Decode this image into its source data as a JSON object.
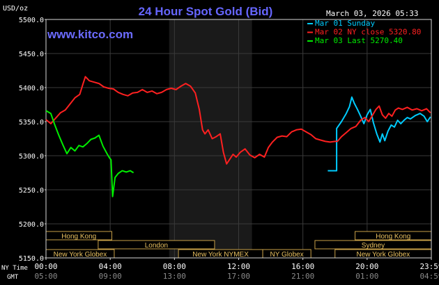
{
  "chart_data": {
    "type": "line",
    "title": "24 Hour Spot Gold (Bid)",
    "ylabel": "USD/oz",
    "watermark": "www.kitco.com",
    "timestamp": "March 03, 2026 05:33",
    "ylim": [
      5150,
      5500
    ],
    "y_ticks": [
      "5500.0",
      "5450.0",
      "5400.0",
      "5350.0",
      "5300.0",
      "5250.0",
      "5200.0",
      "5150.0"
    ],
    "xlim": [
      0,
      24
    ],
    "x_ticks": [
      {
        "h": 0,
        "ny": "00:00",
        "gmt": "05:00"
      },
      {
        "h": 4,
        "ny": "04:00",
        "gmt": "09:00"
      },
      {
        "h": 8,
        "ny": "08:00",
        "gmt": "13:00"
      },
      {
        "h": 12,
        "ny": "12:00",
        "gmt": "17:00"
      },
      {
        "h": 16,
        "ny": "16:00",
        "gmt": "21:00"
      },
      {
        "h": 20,
        "ny": "20:00",
        "gmt": "01:00"
      },
      {
        "h": 24,
        "ny": "23:59",
        "gmt": "04:59"
      }
    ],
    "time_labels": {
      "ny": "NY Time",
      "gmt": "GMT"
    },
    "shaded_period": [
      7.67,
      12.83
    ],
    "legend": [
      {
        "text": "Mar 01 Sunday",
        "color": "#00ccff"
      },
      {
        "text": "Mar 02 NY close 5320.80",
        "color": "#ff2020"
      },
      {
        "text": "Mar 03 Last 5270.40",
        "color": "#00ee00"
      }
    ],
    "sessions": [
      {
        "name": "Hong Kong",
        "start": 0,
        "end": 4.1,
        "row": 0
      },
      {
        "name": "London",
        "start": 3.25,
        "end": 10.5,
        "row": 1
      },
      {
        "name": "New York Globex",
        "start": 0,
        "end": 4.25,
        "row": 2
      },
      {
        "name": "New York NYMEX",
        "start": 8.25,
        "end": 13.5,
        "row": 2
      },
      {
        "name": "NY Globex",
        "start": 13.5,
        "end": 16.5,
        "row": 2
      },
      {
        "name": "Hong Kong",
        "start": 19.25,
        "end": 24,
        "row": 0
      },
      {
        "name": "Sydney",
        "start": 16.75,
        "end": 24,
        "row": 1
      },
      {
        "name": "New York Globex",
        "start": 18,
        "end": 24,
        "row": 2
      }
    ],
    "series": [
      {
        "color": "#00ccff",
        "points": [
          [
            17.55,
            5278
          ],
          [
            18.1,
            5278
          ],
          [
            18.1,
            5340
          ],
          [
            18.4,
            5350
          ],
          [
            18.7,
            5362
          ],
          [
            18.9,
            5372
          ],
          [
            19.05,
            5386
          ],
          [
            19.2,
            5377
          ],
          [
            19.4,
            5368
          ],
          [
            19.6,
            5358
          ],
          [
            19.8,
            5347
          ],
          [
            20.0,
            5360
          ],
          [
            20.2,
            5368
          ],
          [
            20.4,
            5348
          ],
          [
            20.6,
            5332
          ],
          [
            20.8,
            5320
          ],
          [
            20.95,
            5332
          ],
          [
            21.1,
            5322
          ],
          [
            21.3,
            5336
          ],
          [
            21.5,
            5345
          ],
          [
            21.7,
            5342
          ],
          [
            21.9,
            5352
          ],
          [
            22.1,
            5347
          ],
          [
            22.3,
            5352
          ],
          [
            22.5,
            5356
          ],
          [
            22.7,
            5354
          ],
          [
            23.0,
            5359
          ],
          [
            23.3,
            5362
          ],
          [
            23.55,
            5358
          ],
          [
            23.75,
            5350
          ],
          [
            23.95,
            5357
          ]
        ]
      },
      {
        "color": "#ff2020",
        "points": [
          [
            0.0,
            5353
          ],
          [
            0.3,
            5347
          ],
          [
            0.6,
            5355
          ],
          [
            0.9,
            5363
          ],
          [
            1.2,
            5367
          ],
          [
            1.5,
            5376
          ],
          [
            1.8,
            5385
          ],
          [
            2.1,
            5390
          ],
          [
            2.3,
            5405
          ],
          [
            2.45,
            5416
          ],
          [
            2.7,
            5410
          ],
          [
            3.0,
            5408
          ],
          [
            3.3,
            5406
          ],
          [
            3.6,
            5401
          ],
          [
            3.9,
            5399
          ],
          [
            4.2,
            5398
          ],
          [
            4.5,
            5393
          ],
          [
            4.8,
            5390
          ],
          [
            5.1,
            5388
          ],
          [
            5.4,
            5392
          ],
          [
            5.7,
            5393
          ],
          [
            6.0,
            5397
          ],
          [
            6.3,
            5393
          ],
          [
            6.6,
            5395
          ],
          [
            6.9,
            5391
          ],
          [
            7.2,
            5393
          ],
          [
            7.5,
            5397
          ],
          [
            7.8,
            5399
          ],
          [
            8.1,
            5397
          ],
          [
            8.4,
            5402
          ],
          [
            8.7,
            5406
          ],
          [
            9.0,
            5402
          ],
          [
            9.3,
            5392
          ],
          [
            9.55,
            5368
          ],
          [
            9.75,
            5338
          ],
          [
            9.9,
            5332
          ],
          [
            10.1,
            5338
          ],
          [
            10.35,
            5325
          ],
          [
            10.6,
            5328
          ],
          [
            10.85,
            5332
          ],
          [
            11.05,
            5305
          ],
          [
            11.25,
            5288
          ],
          [
            11.45,
            5295
          ],
          [
            11.65,
            5302
          ],
          [
            11.85,
            5298
          ],
          [
            12.1,
            5305
          ],
          [
            12.4,
            5310
          ],
          [
            12.7,
            5301
          ],
          [
            13.0,
            5297
          ],
          [
            13.3,
            5302
          ],
          [
            13.6,
            5298
          ],
          [
            13.85,
            5312
          ],
          [
            14.1,
            5320
          ],
          [
            14.4,
            5327
          ],
          [
            14.7,
            5329
          ],
          [
            15.0,
            5328
          ],
          [
            15.3,
            5335
          ],
          [
            15.6,
            5338
          ],
          [
            15.9,
            5339
          ],
          [
            16.2,
            5335
          ],
          [
            16.5,
            5331
          ],
          [
            16.8,
            5325
          ],
          [
            17.1,
            5323
          ],
          [
            17.4,
            5321
          ],
          [
            17.7,
            5320
          ],
          [
            18.0,
            5321
          ],
          [
            18.15,
            5321
          ],
          [
            18.4,
            5328
          ],
          [
            18.7,
            5334
          ],
          [
            19.0,
            5340
          ],
          [
            19.3,
            5343
          ],
          [
            19.6,
            5352
          ],
          [
            19.85,
            5356
          ],
          [
            20.1,
            5350
          ],
          [
            20.35,
            5360
          ],
          [
            20.55,
            5368
          ],
          [
            20.75,
            5373
          ],
          [
            20.95,
            5360
          ],
          [
            21.15,
            5355
          ],
          [
            21.35,
            5362
          ],
          [
            21.55,
            5358
          ],
          [
            21.75,
            5367
          ],
          [
            21.95,
            5370
          ],
          [
            22.2,
            5368
          ],
          [
            22.5,
            5371
          ],
          [
            22.8,
            5367
          ],
          [
            23.1,
            5369
          ],
          [
            23.4,
            5366
          ],
          [
            23.7,
            5369
          ],
          [
            23.95,
            5363
          ]
        ]
      },
      {
        "color": "#00ee00",
        "points": [
          [
            0.0,
            5366
          ],
          [
            0.3,
            5362
          ],
          [
            0.55,
            5345
          ],
          [
            0.8,
            5330
          ],
          [
            1.05,
            5316
          ],
          [
            1.3,
            5303
          ],
          [
            1.55,
            5312
          ],
          [
            1.8,
            5307
          ],
          [
            2.05,
            5315
          ],
          [
            2.3,
            5313
          ],
          [
            2.55,
            5318
          ],
          [
            2.8,
            5324
          ],
          [
            3.05,
            5326
          ],
          [
            3.3,
            5330
          ],
          [
            3.55,
            5314
          ],
          [
            3.8,
            5303
          ],
          [
            3.95,
            5297
          ],
          [
            4.05,
            5294
          ],
          [
            4.15,
            5240
          ],
          [
            4.3,
            5268
          ],
          [
            4.5,
            5274
          ],
          [
            4.75,
            5278
          ],
          [
            5.0,
            5276
          ],
          [
            5.25,
            5278
          ],
          [
            5.45,
            5275
          ]
        ]
      }
    ]
  }
}
